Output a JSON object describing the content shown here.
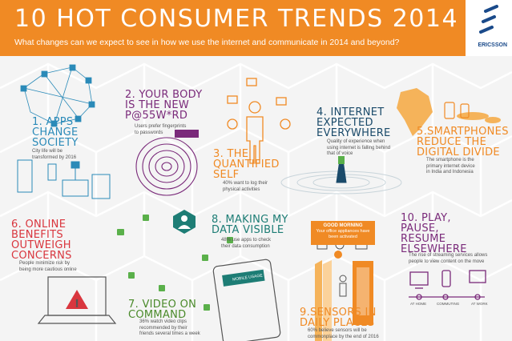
{
  "header": {
    "title": "10 HOT CONSUMER TRENDS 2014",
    "subtitle": "What changes can we expect to see in how we use the internet and communicate in 2014 and beyond?",
    "logo": "ERICSSON"
  },
  "trends": [
    {
      "number": "1.",
      "heading": "APPS CHANGE SOCIETY",
      "lines": [
        "APPS",
        "CHANGE",
        "SOCIETY"
      ],
      "text": [
        "City life will be",
        "transformed by 2016"
      ]
    },
    {
      "number": "2.",
      "heading": "YOUR BODY IS THE NEW P@55W*RD",
      "lines": [
        "YOUR BODY",
        "IS THE NEW",
        "P@55W*RD"
      ],
      "text": [
        "Users prefer fingerprints",
        "to passwords"
      ]
    },
    {
      "number": "3.",
      "heading": "THE QUANTIFIED SELF",
      "lines": [
        "THE",
        "QUANTIFIED",
        "SELF"
      ],
      "text": [
        "40% want to log their",
        "physical activities"
      ]
    },
    {
      "number": "4.",
      "heading": "INTERNET EXPECTED EVERYWHERE",
      "lines": [
        "INTERNET",
        "EXPECTED",
        "EVERYWHERE"
      ],
      "text": [
        "Quality of experience when",
        "using internet is falling behind",
        "that of voice"
      ]
    },
    {
      "number": "5.",
      "heading": "SMARTPHONES REDUCE THE DIGITAL DIVIDE",
      "lines": [
        "SMARTPHONES",
        "REDUCE THE",
        "DIGITAL DIVIDE"
      ],
      "text": [
        "The smartphone is the",
        "primary internet device",
        "in India and Indonesia"
      ]
    },
    {
      "number": "6.",
      "heading": "ONLINE BENEFITS OUTWEIGH CONCERNS",
      "lines": [
        "ONLINE",
        "BENEFITS",
        "OUTWEIGH",
        "CONCERNS"
      ],
      "text": [
        "People minimize risk by",
        "being more cautious online"
      ]
    },
    {
      "number": "7.",
      "heading": "VIDEO ON COMMAND",
      "lines": [
        "VIDEO ON",
        "COMMAND"
      ],
      "text": [
        "36% watch video clips",
        "recommended by their",
        "friends several times a week"
      ]
    },
    {
      "number": "8.",
      "heading": "MAKING MY DATA VISIBLE",
      "lines": [
        "MAKING MY",
        "DATA VISIBLE"
      ],
      "text": [
        "48% use apps to check",
        "their data consumption"
      ]
    },
    {
      "number": "9.",
      "heading": "SENSORS IN DAILY PLACES",
      "lines": [
        "SENSORS IN",
        "DAILY PLACES"
      ],
      "text": [
        "60% believe sensors will be",
        "commonplace by the end of 2016"
      ]
    },
    {
      "number": "10.",
      "heading": "PLAY, PAUSE, RESUME ELSEWHERE",
      "lines": [
        "PLAY,",
        "PAUSE,",
        "RESUME",
        "ELSEWHERE"
      ],
      "text": [
        "The rise of streaming services allows",
        "people to view content on the move"
      ]
    }
  ],
  "notice": {
    "title": "GOOD MORNING",
    "text": [
      "Your office appliances have",
      "been activated"
    ]
  },
  "phone_screen": {
    "label": "MOBILE USAGE"
  },
  "stages": [
    "AT HOME",
    "COMMUTING",
    "AT WORK"
  ],
  "colors": {
    "orange": "#f08a24",
    "blue": "#2a8ab8",
    "purple": "#7a2a7a",
    "red": "#d9363e",
    "teal": "#1d7d75"
  }
}
